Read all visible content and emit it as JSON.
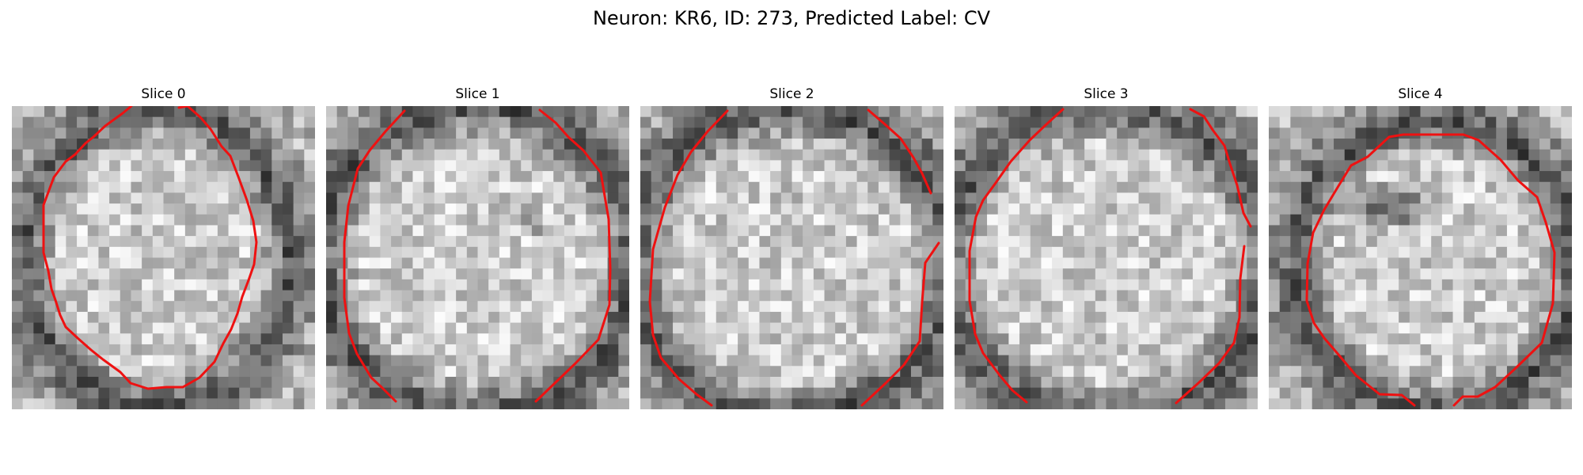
{
  "figure": {
    "title": "Neuron: KR6, ID: 273, Predicted Label: CV"
  },
  "contour_color": "#ee1111",
  "slices": [
    {
      "label": "Slice 0"
    },
    {
      "label": "Slice 1"
    },
    {
      "label": "Slice 2"
    },
    {
      "label": "Slice 3"
    },
    {
      "label": "Slice 4"
    }
  ]
}
